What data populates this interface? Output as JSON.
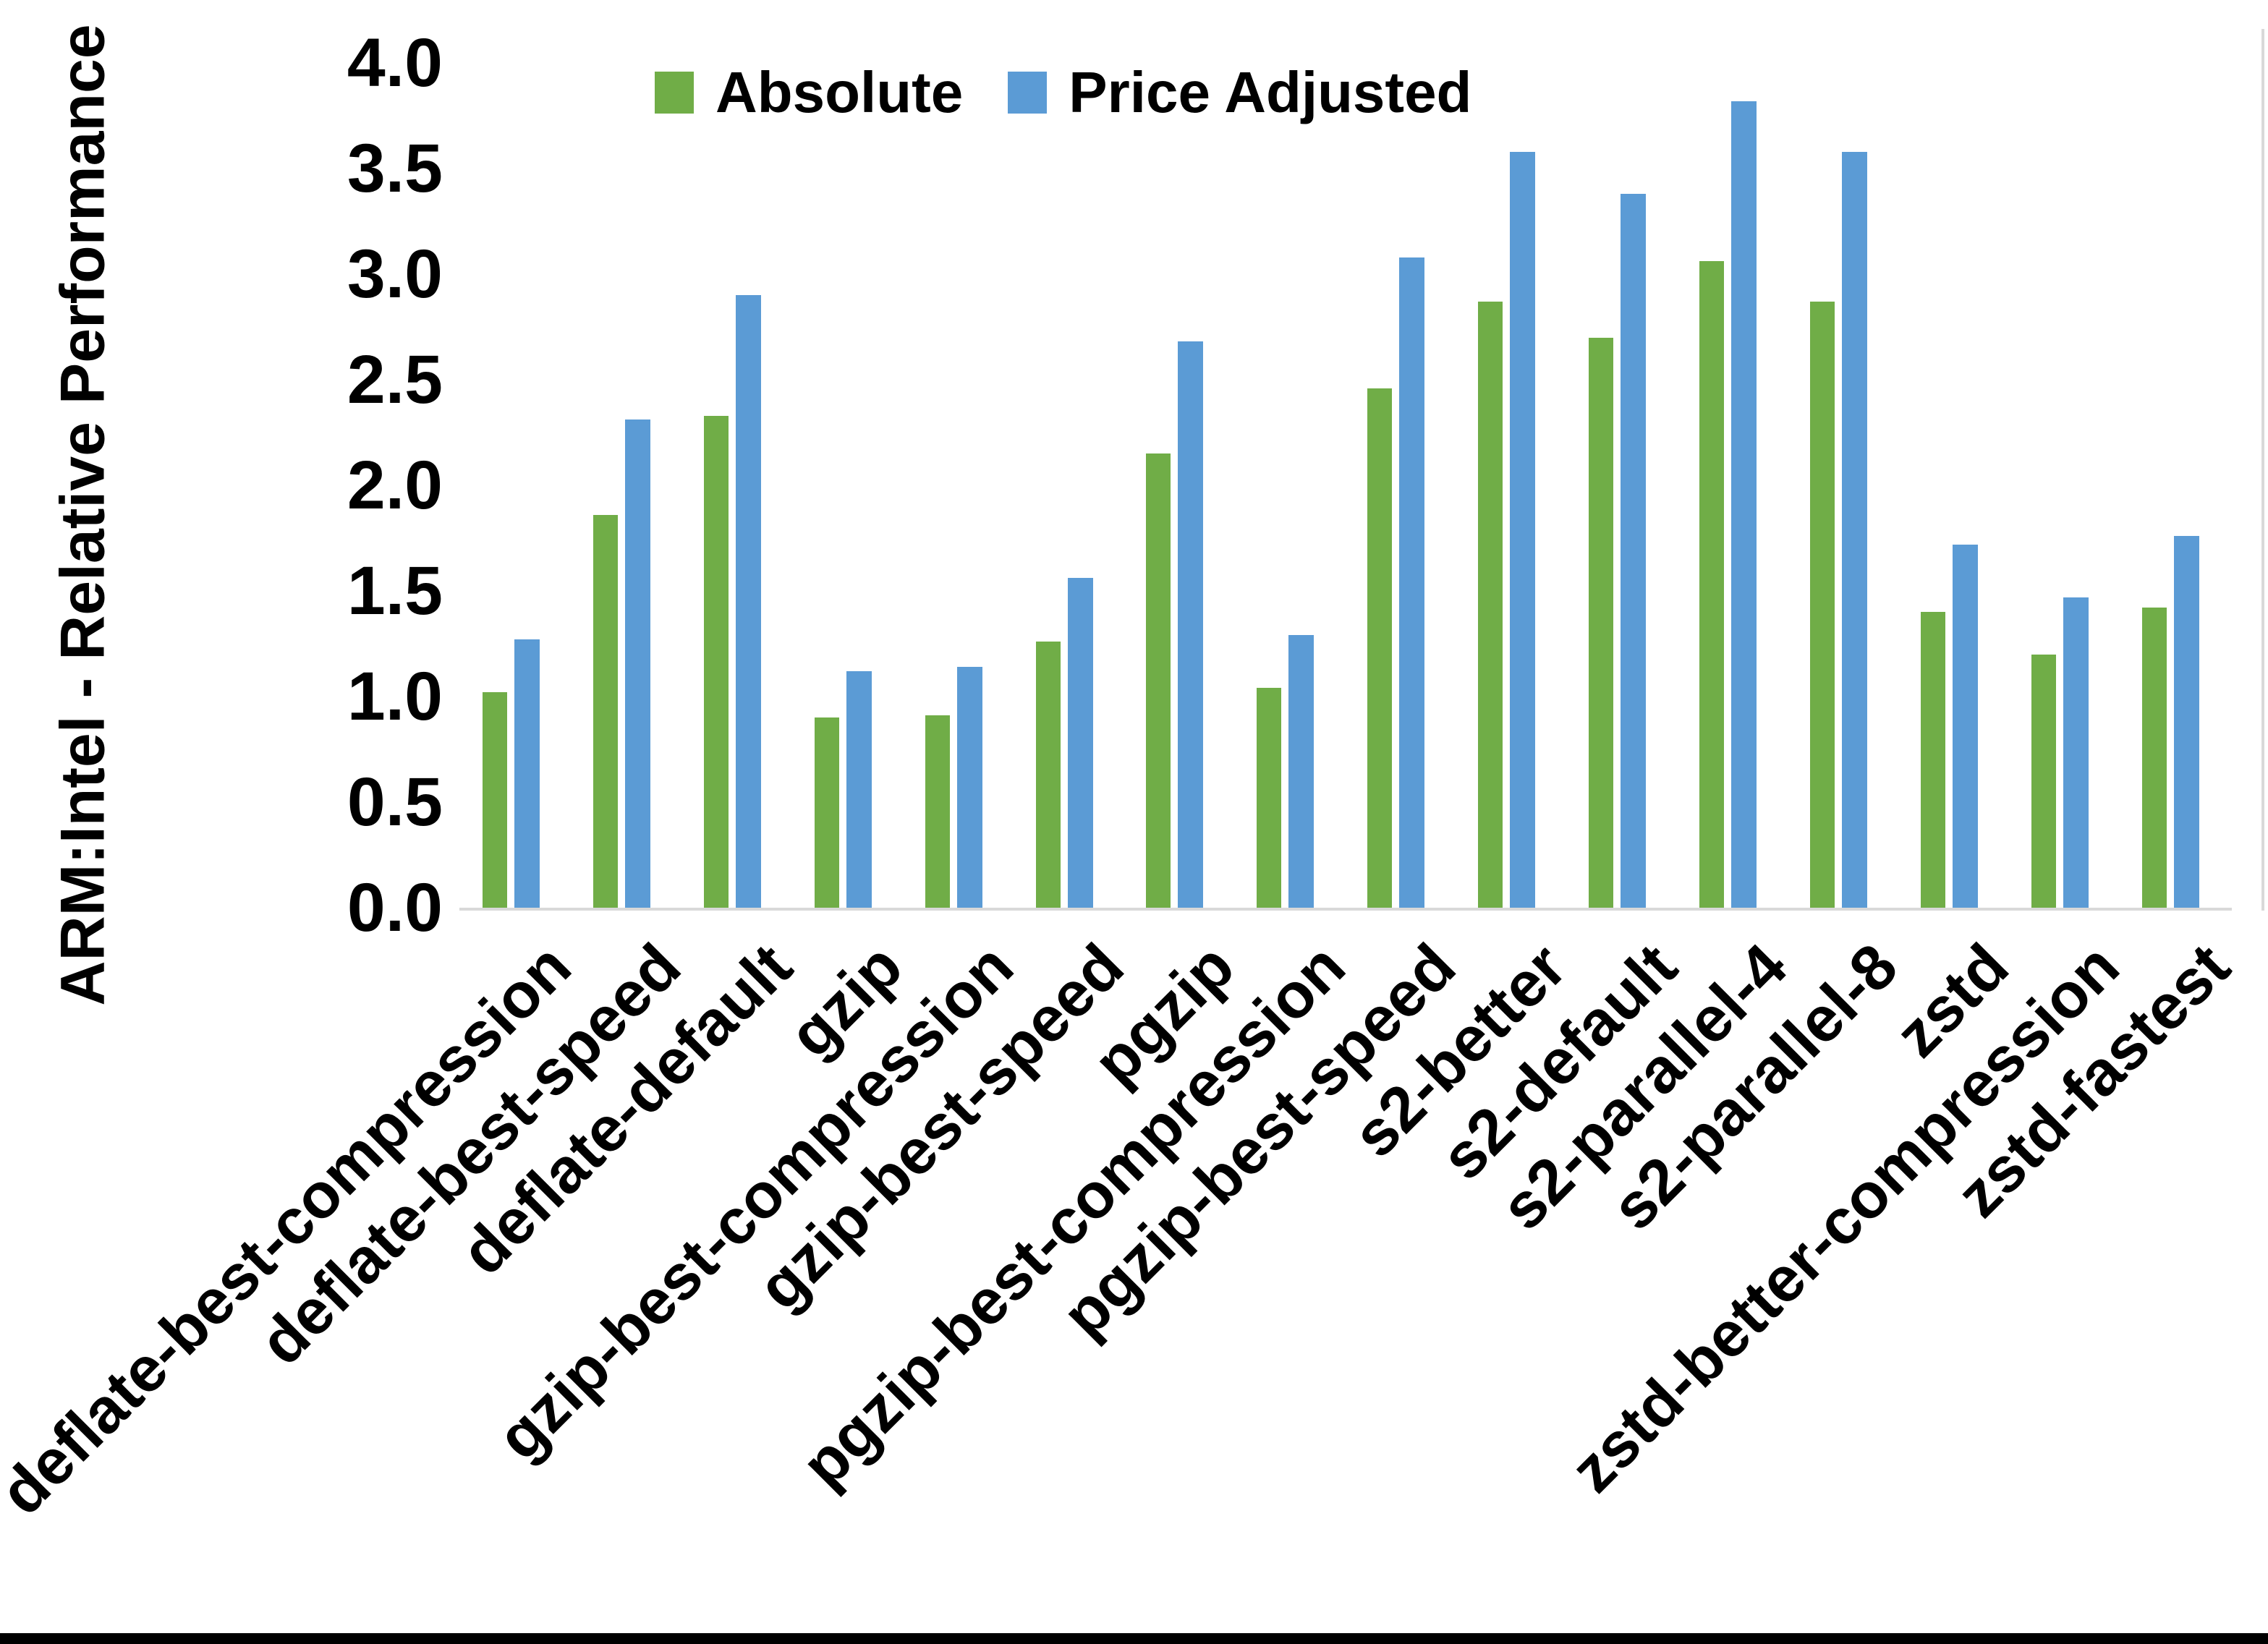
{
  "page": {
    "background": "#FFFFFF",
    "bottom_border_color": "#000000",
    "axis_line_color": "#D9D9D9",
    "text_color": "#000000"
  },
  "chart_data": {
    "type": "bar",
    "title": "",
    "xlabel": "",
    "ylabel": "ARM:Intel - Relative Performance",
    "ylim": [
      0.0,
      4.0
    ],
    "ytick_step": 0.5,
    "ytick_labels": [
      "0.0",
      "0.5",
      "1.0",
      "1.5",
      "2.0",
      "2.5",
      "3.0",
      "3.5",
      "4.0"
    ],
    "grid": false,
    "legend_position": "top-center",
    "categories": [
      "deflate-best-compression",
      "deflate-best-speed",
      "deflate-default",
      "gzip",
      "gzip-best-compression",
      "gzip-best-speed",
      "pgzip",
      "pgzip-best-compression",
      "pgzip-best-speed",
      "s2-better",
      "s2-default",
      "s2-parallel-4",
      "s2-parallel-8",
      "zstd",
      "zstd-better-compression",
      "zstd-fastest"
    ],
    "series": [
      {
        "name": "Absolute",
        "color": "#70AD47",
        "values": [
          1.02,
          1.86,
          2.33,
          0.9,
          0.91,
          1.26,
          2.15,
          1.04,
          2.46,
          2.87,
          2.7,
          3.06,
          2.87,
          1.4,
          1.2,
          1.42
        ]
      },
      {
        "name": "Price Adjusted",
        "color": "#5B9BD5",
        "values": [
          1.27,
          2.31,
          2.9,
          1.12,
          1.14,
          1.56,
          2.68,
          1.29,
          3.08,
          3.58,
          3.38,
          3.82,
          3.58,
          1.72,
          1.47,
          1.76
        ]
      }
    ]
  }
}
